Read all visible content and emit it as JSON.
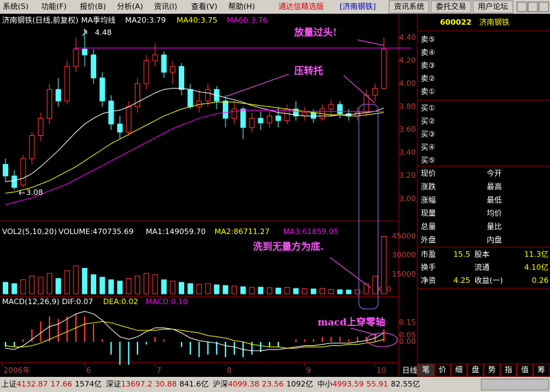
{
  "menu": {
    "items": [
      "系统(S)",
      "功能(F)",
      "报价(B)",
      "分析(A)",
      "资讯(I)",
      "查看(V)",
      "帮助(H)"
    ],
    "title": "通达信精选版",
    "stock_tag": "[济南钢铁]",
    "buttons": [
      "资讯系统",
      "委托交易",
      "用户论坛"
    ]
  },
  "chart_data": [
    {
      "type": "candlestick",
      "title": "济南钢铁(日线,前复权)",
      "indicator": "MA季均线",
      "ma_labels": [
        "MA20:3.79",
        "MA40:3.75",
        "MA60:3.76"
      ],
      "open": [
        3.3,
        3.2,
        3.12,
        3.35,
        3.55,
        3.7,
        3.95,
        3.85,
        4.15,
        4.3,
        4.25,
        4.05,
        3.85,
        3.65,
        3.58,
        3.8,
        4.0,
        4.2,
        4.25,
        4.1,
        4.15,
        3.95,
        3.8,
        3.85,
        3.95,
        3.85,
        3.7,
        3.78,
        3.62,
        3.7,
        3.66,
        3.72,
        3.68,
        3.78,
        3.72,
        3.75,
        3.7,
        3.78,
        3.82,
        3.74,
        3.72,
        3.75,
        3.9,
        3.96
      ],
      "high": [
        3.35,
        3.25,
        3.38,
        3.58,
        3.75,
        4.0,
        4.05,
        4.2,
        4.4,
        4.48,
        4.3,
        4.1,
        3.9,
        3.72,
        3.85,
        4.05,
        4.25,
        4.35,
        4.28,
        4.2,
        4.18,
        4.0,
        3.95,
        4.0,
        3.98,
        3.9,
        3.85,
        3.8,
        3.75,
        3.76,
        3.78,
        3.8,
        3.82,
        3.85,
        3.8,
        3.78,
        3.82,
        3.86,
        3.85,
        3.78,
        3.8,
        3.95,
        4.0,
        4.4
      ],
      "low": [
        3.15,
        3.08,
        3.1,
        3.3,
        3.5,
        3.65,
        3.8,
        3.82,
        4.1,
        4.15,
        4.0,
        3.8,
        3.6,
        3.52,
        3.55,
        3.75,
        3.95,
        4.15,
        4.05,
        4.0,
        3.9,
        3.78,
        3.75,
        3.8,
        3.78,
        3.62,
        3.65,
        3.52,
        3.58,
        3.6,
        3.62,
        3.62,
        3.65,
        3.68,
        3.68,
        3.66,
        3.68,
        3.72,
        3.7,
        3.68,
        3.68,
        3.72,
        3.85,
        3.95
      ],
      "close": [
        3.2,
        3.1,
        3.35,
        3.55,
        3.7,
        3.95,
        3.85,
        4.15,
        4.3,
        4.25,
        4.05,
        3.85,
        3.65,
        3.58,
        3.8,
        4.0,
        4.2,
        4.25,
        4.1,
        4.15,
        3.95,
        3.8,
        3.85,
        3.95,
        3.85,
        3.7,
        3.78,
        3.62,
        3.7,
        3.66,
        3.72,
        3.68,
        3.78,
        3.72,
        3.75,
        3.7,
        3.78,
        3.82,
        3.74,
        3.72,
        3.75,
        3.9,
        3.96,
        4.3
      ],
      "series": [
        {
          "color": "#ffffff",
          "values": [
            3.15,
            3.16,
            3.18,
            3.22,
            3.28,
            3.35,
            3.42,
            3.5,
            3.58,
            3.65,
            3.7,
            3.74,
            3.76,
            3.77,
            3.8,
            3.84,
            3.88,
            3.92,
            3.95,
            3.96,
            3.96,
            3.95,
            3.93,
            3.92,
            3.9,
            3.88,
            3.86,
            3.84,
            3.81,
            3.79,
            3.77,
            3.75,
            3.74,
            3.73,
            3.72,
            3.72,
            3.72,
            3.72,
            3.73,
            3.73,
            3.74,
            3.75,
            3.76,
            3.79
          ]
        },
        {
          "color": "#ffff00",
          "values": [
            3.05,
            3.06,
            3.08,
            3.1,
            3.13,
            3.16,
            3.2,
            3.24,
            3.28,
            3.33,
            3.38,
            3.43,
            3.48,
            3.52,
            3.56,
            3.6,
            3.64,
            3.68,
            3.72,
            3.75,
            3.78,
            3.8,
            3.82,
            3.83,
            3.84,
            3.84,
            3.84,
            3.83,
            3.82,
            3.81,
            3.8,
            3.79,
            3.78,
            3.77,
            3.76,
            3.75,
            3.74,
            3.73,
            3.73,
            3.72,
            3.72,
            3.73,
            3.74,
            3.75
          ]
        },
        {
          "color": "#ff00ff",
          "values": [
            2.95,
            2.97,
            2.99,
            3.01,
            3.04,
            3.07,
            3.1,
            3.13,
            3.17,
            3.21,
            3.25,
            3.29,
            3.33,
            3.37,
            3.41,
            3.45,
            3.49,
            3.53,
            3.57,
            3.61,
            3.64,
            3.67,
            3.7,
            3.72,
            3.74,
            3.75,
            3.76,
            3.77,
            3.77,
            3.77,
            3.77,
            3.77,
            3.77,
            3.76,
            3.76,
            3.76,
            3.76,
            3.76,
            3.76,
            3.76,
            3.76,
            3.76,
            3.76,
            3.76
          ]
        }
      ],
      "up_color": "#ff3232",
      "down_color": "#54fcfc",
      "ylim": [
        2.85,
        4.5
      ],
      "yticks": [
        {
          "value": 3,
          "label": "3.00"
        },
        {
          "value": 3.2,
          "label": "3.20"
        },
        {
          "value": 3.4,
          "label": "3.40"
        },
        {
          "value": 3.6,
          "label": "3.60"
        },
        {
          "value": 3.8,
          "label": "3.80"
        },
        {
          "value": 4,
          "label": "4.00"
        },
        {
          "value": 4.2,
          "label": "4.20"
        },
        {
          "value": 4.4,
          "label": "4.40"
        }
      ],
      "annotations": [
        "4.48",
        "3.08",
        "放量过头!",
        "压转托"
      ]
    },
    {
      "type": "volume",
      "header": [
        "VOL2(5,10,20)",
        "VOLUME:470735.69",
        "MA1:149059.70",
        "MA2:86711.27",
        "MA3:61859.05"
      ],
      "values": [
        9000,
        8000,
        11000,
        14000,
        13000,
        16000,
        12000,
        18000,
        22000,
        20000,
        15000,
        13000,
        11000,
        10000,
        12000,
        14000,
        16000,
        15000,
        11000,
        10000,
        9000,
        8000,
        7500,
        8000,
        7000,
        6500,
        6000,
        5500,
        5000,
        5200,
        4800,
        4500,
        5000,
        4200,
        4000,
        3800,
        4200,
        3500,
        3200,
        3000,
        3300,
        8000,
        14000,
        45000
      ],
      "ylim": [
        0,
        50000
      ],
      "yticks": [
        15000,
        30000,
        45000
      ],
      "scale_label": "X10",
      "annotations": [
        "洗到无量方为底."
      ]
    },
    {
      "type": "macd",
      "header": [
        "MACD(12,26,9)",
        "DIF:0.07",
        "DEA:0.02",
        "MACD:0.10"
      ],
      "dif": [
        -0.05,
        -0.06,
        -0.03,
        0.02,
        0.07,
        0.12,
        0.14,
        0.18,
        0.22,
        0.24,
        0.22,
        0.17,
        0.1,
        0.04,
        0.02,
        0.04,
        0.08,
        0.11,
        0.11,
        0.1,
        0.07,
        0.03,
        0.01,
        0.0,
        -0.01,
        -0.03,
        -0.04,
        -0.06,
        -0.07,
        -0.07,
        -0.06,
        -0.06,
        -0.05,
        -0.04,
        -0.03,
        -0.03,
        -0.02,
        -0.01,
        -0.01,
        -0.01,
        0.0,
        0.01,
        0.03,
        0.07
      ],
      "dea": [
        -0.03,
        -0.04,
        -0.04,
        -0.03,
        -0.01,
        0.02,
        0.05,
        0.08,
        0.11,
        0.14,
        0.15,
        0.16,
        0.15,
        0.13,
        0.11,
        0.09,
        0.09,
        0.09,
        0.1,
        0.1,
        0.09,
        0.08,
        0.07,
        0.05,
        0.04,
        0.03,
        0.01,
        0.0,
        -0.02,
        -0.03,
        -0.04,
        -0.04,
        -0.05,
        -0.05,
        -0.04,
        -0.04,
        -0.04,
        -0.03,
        -0.03,
        -0.02,
        -0.02,
        -0.01,
        0.0,
        0.02
      ],
      "macd": [
        -0.04,
        -0.04,
        0.02,
        0.1,
        0.16,
        0.2,
        0.18,
        0.2,
        0.22,
        0.2,
        0.14,
        0.02,
        -0.1,
        -0.18,
        -0.18,
        -0.1,
        -0.02,
        0.04,
        0.02,
        0.0,
        -0.04,
        -0.1,
        -0.12,
        -0.1,
        -0.1,
        -0.12,
        -0.1,
        -0.12,
        -0.1,
        -0.08,
        -0.04,
        -0.04,
        0.0,
        0.02,
        0.02,
        0.02,
        0.04,
        0.04,
        0.04,
        0.02,
        0.04,
        0.04,
        0.06,
        0.1
      ],
      "ylim": [
        -0.2,
        0.34
      ],
      "yticks": [
        {
          "value": 0,
          "label": "0.00"
        },
        {
          "value": 0.05,
          "label": "0.05"
        },
        {
          "value": 0.15,
          "label": "0.15"
        }
      ],
      "x_labels": [
        "2006年",
        "6",
        "7",
        "8",
        "9",
        "10"
      ],
      "period": "日线",
      "annotations": [
        "macd上穿零轴"
      ]
    }
  ],
  "quote_panel": {
    "code": "600022",
    "name": "济南钢铁",
    "sell": [
      "卖⑤",
      "卖④",
      "卖③",
      "卖②",
      "卖①"
    ],
    "buy": [
      "买①",
      "买②",
      "买③",
      "买④",
      "买⑤"
    ],
    "fields": [
      [
        "现价",
        "今开"
      ],
      [
        "涨跌",
        "最高"
      ],
      [
        "涨幅",
        "最低"
      ],
      [
        "现量",
        "均价"
      ],
      [
        "总量",
        "量比"
      ],
      [
        "外盘",
        "内盘"
      ]
    ],
    "stats": [
      {
        "label": "市盈",
        "value": "15.5"
      },
      {
        "label": "股本",
        "value": "11.3亿"
      },
      {
        "label": "换手"
      },
      {
        "label": "流通",
        "value": "4.10亿"
      },
      {
        "label": "净资",
        "value": "4.25"
      },
      {
        "label": "收益(一)",
        "value": "0.26"
      }
    ],
    "tabs": [
      "笔",
      "价",
      "细",
      "盘",
      "势",
      "指",
      "值",
      "筹"
    ]
  },
  "status_bar": [
    [
      "上证",
      "4132.87",
      "17.66",
      "1574亿"
    ],
    [
      "深证",
      "13697.2",
      "30.88",
      "841.6亿"
    ],
    [
      "沪深",
      "4099.38",
      "23.56",
      "1092亿"
    ],
    [
      "中小",
      "4993.59",
      "55.91",
      "82.55亿"
    ]
  ]
}
